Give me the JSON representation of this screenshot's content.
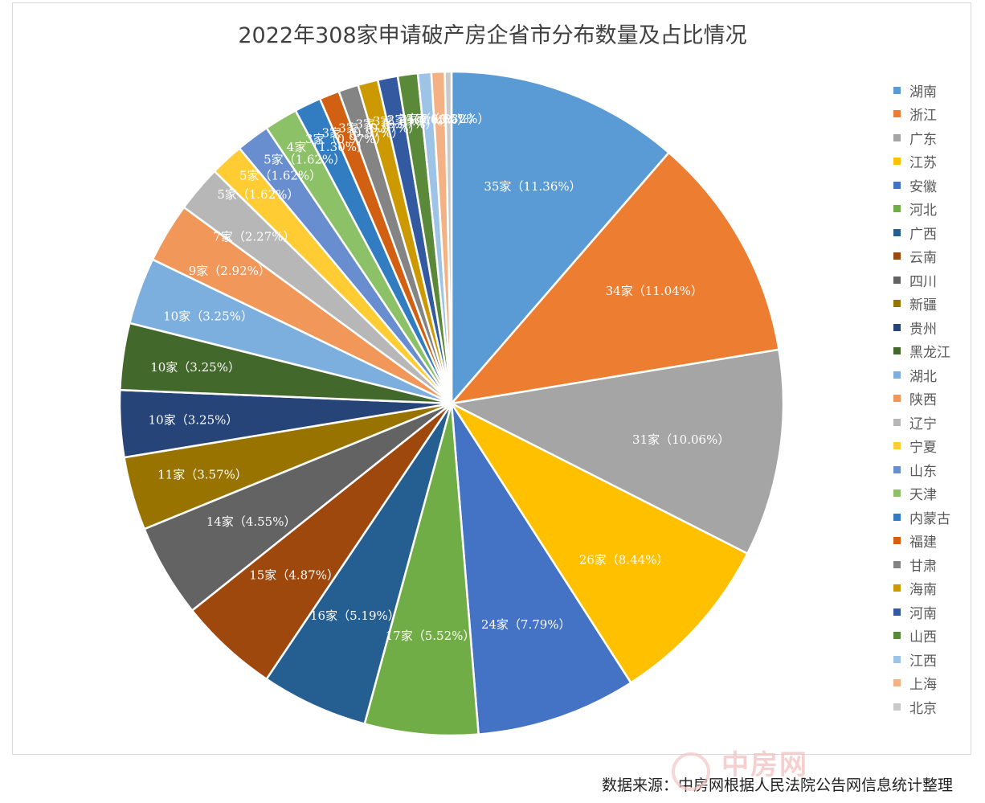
{
  "chart_data": {
    "type": "pie",
    "title": "2022年308家申请破产房企省市分布数量及占比情况",
    "unit": "家",
    "total": 308,
    "start_angle_deg": 0,
    "direction": "clockwise",
    "legend_position": "right",
    "slices": [
      {
        "label": "湖南",
        "value": 35,
        "percent": "11.36%",
        "data_label": "35家（11.36%）",
        "color": "#5b9bd5"
      },
      {
        "label": "浙江",
        "value": 34,
        "percent": "11.04%",
        "data_label": "34家（11.04%）",
        "color": "#ed7d31"
      },
      {
        "label": "广东",
        "value": 31,
        "percent": "10.06%",
        "data_label": "31家（10.06%）",
        "color": "#a5a5a5"
      },
      {
        "label": "江苏",
        "value": 26,
        "percent": "8.44%",
        "data_label": "26家（8.44%）",
        "color": "#ffc000"
      },
      {
        "label": "安徽",
        "value": 24,
        "percent": "7.79%",
        "data_label": "24家（7.79%）",
        "color": "#4472c4"
      },
      {
        "label": "河北",
        "value": 17,
        "percent": "5.52%",
        "data_label": "17家（5.52%）",
        "color": "#70ad47"
      },
      {
        "label": "广西",
        "value": 16,
        "percent": "5.19%",
        "data_label": "16家（5.19%）",
        "color": "#255e91"
      },
      {
        "label": "云南",
        "value": 15,
        "percent": "4.87%",
        "data_label": "15家（4.87%）",
        "color": "#9e480e"
      },
      {
        "label": "四川",
        "value": 14,
        "percent": "4.55%",
        "data_label": "14家（4.55%）",
        "color": "#636363"
      },
      {
        "label": "新疆",
        "value": 11,
        "percent": "3.57%",
        "data_label": "11家（3.57%）",
        "color": "#997300"
      },
      {
        "label": "贵州",
        "value": 10,
        "percent": "3.25%",
        "data_label": "10家（3.25%）",
        "color": "#264478"
      },
      {
        "label": "黑龙江",
        "value": 10,
        "percent": "3.25%",
        "data_label": "10家（3.25%）",
        "color": "#43682b"
      },
      {
        "label": "湖北",
        "value": 10,
        "percent": "3.25%",
        "data_label": "10家（3.25%）",
        "color": "#7cafdd"
      },
      {
        "label": "陕西",
        "value": 9,
        "percent": "2.92%",
        "data_label": "9家（2.92%）",
        "color": "#f1975a"
      },
      {
        "label": "辽宁",
        "value": 7,
        "percent": "2.27%",
        "data_label": "7家（2.27%）",
        "color": "#b7b7b7"
      },
      {
        "label": "宁夏",
        "value": 5,
        "percent": "1.62%",
        "data_label": "5家（1.62%）",
        "color": "#ffcd33"
      },
      {
        "label": "山东",
        "value": 5,
        "percent": "1.62%",
        "data_label": "5家（1.62%）",
        "color": "#698ed0"
      },
      {
        "label": "天津",
        "value": 5,
        "percent": "1.62%",
        "data_label": "5家（1.62%）",
        "color": "#8cc168"
      },
      {
        "label": "内蒙古",
        "value": 4,
        "percent": "1.30%",
        "data_label": "4家（1.30%）",
        "color": "#327dc2"
      },
      {
        "label": "福建",
        "value": 3,
        "percent": "0.97%",
        "data_label": "3家（0.97%）",
        "color": "#d26012"
      },
      {
        "label": "甘肃",
        "value": 3,
        "percent": "0.97%",
        "data_label": "3家（0.97%）",
        "color": "#848484"
      },
      {
        "label": "海南",
        "value": 3,
        "percent": "0.97%",
        "data_label": "3家（0.97%）",
        "color": "#cc9a00"
      },
      {
        "label": "河南",
        "value": 3,
        "percent": "0.97%",
        "data_label": "3家（0.97%）",
        "color": "#335aa1"
      },
      {
        "label": "山西",
        "value": 3,
        "percent": "0.97%",
        "data_label": "3家（0.97%）",
        "color": "#5a8a39"
      },
      {
        "label": "江西",
        "value": 2,
        "percent": "0.65%",
        "data_label": "2家（0.65%）",
        "color": "#9dc3e6"
      },
      {
        "label": "上海",
        "value": 2,
        "percent": "0.65%",
        "data_label": "2家（0.65%）",
        "color": "#f4b183"
      },
      {
        "label": "北京",
        "value": 1,
        "percent": "0.32%",
        "data_label": "1家（0.32%）",
        "color": "#c9c9c9"
      }
    ]
  },
  "source_note": "数据来源：中房网根据人民法院公告网信息统计整理",
  "watermark": {
    "text": "中房网",
    "subtext": "FANGCHAN.COM"
  }
}
